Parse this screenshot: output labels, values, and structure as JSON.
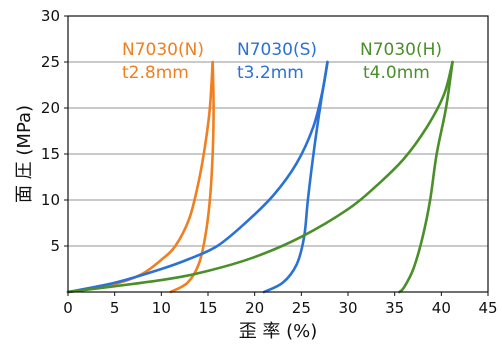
{
  "chart_data": {
    "type": "line",
    "xlabel": "歪 率 (%)",
    "ylabel": "面 圧 (MPa)",
    "xlim": [
      0,
      45
    ],
    "ylim": [
      0,
      30
    ],
    "xticks": [
      0,
      5,
      10,
      15,
      20,
      25,
      30,
      35,
      40,
      45
    ],
    "yticks": [
      5,
      10,
      15,
      20,
      25,
      30
    ],
    "grid": "horizontal",
    "legend": "none",
    "series": [
      {
        "name": "N7030(N)",
        "sub_label": "t2.8mm",
        "color": "#f07f20",
        "loading": [
          [
            0,
            0
          ],
          [
            3,
            0.5
          ],
          [
            5.5,
            1
          ],
          [
            8,
            2
          ],
          [
            10,
            3.5
          ],
          [
            11.5,
            5
          ],
          [
            13,
            8
          ],
          [
            14,
            12
          ],
          [
            14.7,
            16
          ],
          [
            15.2,
            20
          ],
          [
            15.5,
            25
          ]
        ],
        "unloading": [
          [
            15.5,
            25
          ],
          [
            15.6,
            20
          ],
          [
            15.5,
            15
          ],
          [
            15.2,
            10
          ],
          [
            14.7,
            6
          ],
          [
            14,
            3
          ],
          [
            12.8,
            1
          ],
          [
            11,
            0
          ]
        ]
      },
      {
        "name": "N7030(S)",
        "sub_label": "t3.2mm",
        "color": "#2a72d6",
        "loading": [
          [
            0,
            0
          ],
          [
            5,
            1
          ],
          [
            10,
            2.5
          ],
          [
            13,
            3.6
          ],
          [
            16,
            5
          ],
          [
            19,
            7.5
          ],
          [
            22,
            10.5
          ],
          [
            24.5,
            14
          ],
          [
            26.3,
            18
          ],
          [
            27.3,
            22
          ],
          [
            27.8,
            25
          ]
        ],
        "unloading": [
          [
            27.8,
            25
          ],
          [
            27,
            20
          ],
          [
            26.3,
            15
          ],
          [
            25.7,
            10
          ],
          [
            25.3,
            6
          ],
          [
            24.5,
            3
          ],
          [
            23,
            1
          ],
          [
            21,
            0
          ]
        ]
      },
      {
        "name": "N7030(H)",
        "sub_label": "t4.0mm",
        "color": "#4a8f2a",
        "loading": [
          [
            0,
            0
          ],
          [
            10,
            1.3
          ],
          [
            15,
            2.3
          ],
          [
            20,
            3.8
          ],
          [
            25,
            6
          ],
          [
            30,
            9
          ],
          [
            33,
            11.5
          ],
          [
            36,
            14.5
          ],
          [
            38.5,
            18
          ],
          [
            40.3,
            21.5
          ],
          [
            41.2,
            25
          ]
        ],
        "unloading": [
          [
            41.2,
            25
          ],
          [
            40.5,
            20
          ],
          [
            39.5,
            15
          ],
          [
            38.8,
            10
          ],
          [
            38,
            6
          ],
          [
            37,
            2.5
          ],
          [
            36,
            0.5
          ],
          [
            35.5,
            0
          ]
        ]
      }
    ]
  }
}
